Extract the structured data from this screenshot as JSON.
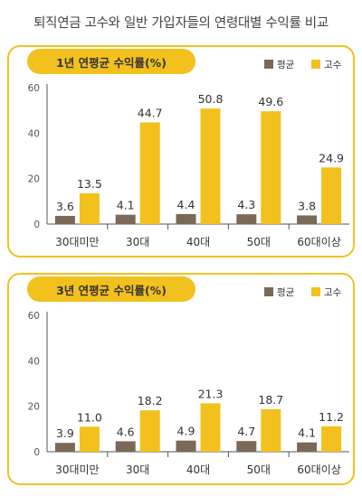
{
  "title": "퇴직연금 고수와 일반 가입자들의 연령대별 수익률 비교",
  "colors": {
    "average": "#7a6957",
    "expert": "#f2c11d",
    "border": "#f2c11d",
    "axis": "#555555"
  },
  "chart_data": [
    {
      "type": "bar",
      "title": "1년 연평균 수익률(%)",
      "categories": [
        "30대미만",
        "30대",
        "40대",
        "50대",
        "60대이상"
      ],
      "series": [
        {
          "name": "평균",
          "values": [
            3.6,
            4.1,
            4.4,
            4.3,
            3.8
          ]
        },
        {
          "name": "고수",
          "values": [
            13.5,
            44.7,
            50.8,
            49.6,
            24.9
          ]
        }
      ],
      "yticks": [
        0,
        20,
        40,
        60
      ],
      "ylim": [
        0,
        60
      ],
      "legend": "top-right",
      "grid": false
    },
    {
      "type": "bar",
      "title": "3년 연평균 수익률(%)",
      "categories": [
        "30대미만",
        "30대",
        "40대",
        "50대",
        "60대이상"
      ],
      "series": [
        {
          "name": "평균",
          "values": [
            3.9,
            4.6,
            4.9,
            4.7,
            4.1
          ]
        },
        {
          "name": "고수",
          "values": [
            11.0,
            18.2,
            21.3,
            18.7,
            11.2
          ]
        }
      ],
      "yticks": [
        0,
        20,
        40,
        60
      ],
      "ylim": [
        0,
        60
      ],
      "legend": "top-right",
      "grid": false
    }
  ]
}
